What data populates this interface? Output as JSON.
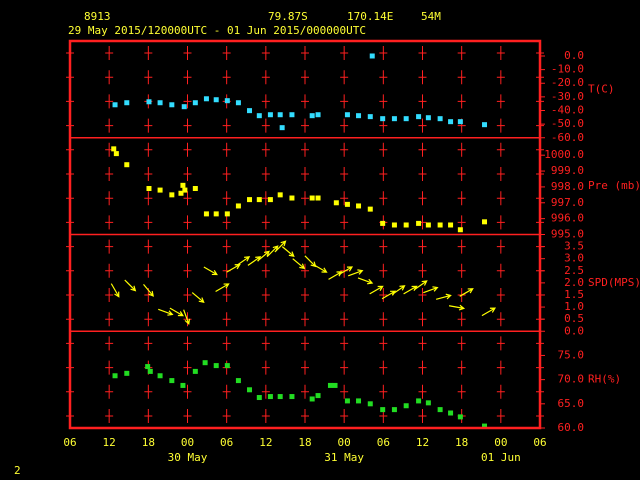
{
  "chart_data": {
    "type": "meteogram",
    "station": "8913",
    "latitude": "79.87S",
    "longitude": "170.14E",
    "elevation": "54M",
    "period": "29 May 2015/120000UTC - 01 Jun 2015/000000UTC",
    "page_number": "2",
    "xlim": [
      0,
      72
    ],
    "xticks": [
      {
        "value": 0,
        "label": "06"
      },
      {
        "value": 6,
        "label": "12"
      },
      {
        "value": 12,
        "label": "18"
      },
      {
        "value": 18,
        "label": "00"
      },
      {
        "value": 24,
        "label": "06"
      },
      {
        "value": 30,
        "label": "12"
      },
      {
        "value": 36,
        "label": "18"
      },
      {
        "value": 42,
        "label": "00"
      },
      {
        "value": 48,
        "label": "06"
      },
      {
        "value": 54,
        "label": "12"
      },
      {
        "value": 60,
        "label": "18"
      },
      {
        "value": 66,
        "label": "00"
      },
      {
        "value": 72,
        "label": "06"
      }
    ],
    "date_labels": [
      {
        "value": 18,
        "label": "30 May"
      },
      {
        "value": 42,
        "label": "31 May"
      },
      {
        "value": 66,
        "label": "01 Jun"
      }
    ],
    "panels": [
      {
        "type": "scatter",
        "label": "T(C)",
        "color": "#33ddff",
        "ylim": [
          -60,
          11
        ],
        "yticks": [
          {
            "value": 0,
            "label": "0.0"
          },
          {
            "value": -10,
            "label": "-10.0"
          },
          {
            "value": -20,
            "label": "-20.0"
          },
          {
            "value": -30,
            "label": "-30.0"
          },
          {
            "value": -40,
            "label": "-40.0"
          },
          {
            "value": -50,
            "label": "-50.0"
          },
          {
            "value": -60,
            "label": "-60.0"
          }
        ],
        "x": [
          6.9,
          8.7,
          12.1,
          13.8,
          15.6,
          17.5,
          19.2,
          20.9,
          22.4,
          24.1,
          25.8,
          27.5,
          29.0,
          30.7,
          32.2,
          32.5,
          34.0,
          37.1,
          38.0,
          42.5,
          44.2,
          46.0,
          46.3,
          47.9,
          49.7,
          51.5,
          53.4,
          54.9,
          56.7,
          58.3,
          59.8,
          63.5
        ],
        "values": [
          -35.8,
          -34.3,
          -33.6,
          -34.3,
          -35.8,
          -37.2,
          -34.3,
          -31.4,
          -32.1,
          -32.8,
          -34.3,
          -40.1,
          -43.8,
          -43.1,
          -43.1,
          -52.6,
          -43.1,
          -43.8,
          -43.1,
          -43.1,
          -43.8,
          -44.5,
          0,
          -46.0,
          -46.0,
          -46.0,
          -44.5,
          -45.3,
          -46.0,
          -48.2,
          -48.2,
          -50.4
        ]
      },
      {
        "type": "scatter",
        "label": "Pre (mb)",
        "color": "#ffff00",
        "ylim": [
          995,
          1001.1
        ],
        "yticks": [
          {
            "value": 1000,
            "label": "1000.0"
          },
          {
            "value": 999,
            "label": "999.0"
          },
          {
            "value": 998,
            "label": "998.0"
          },
          {
            "value": 997,
            "label": "997.0"
          },
          {
            "value": 996,
            "label": "996.0"
          },
          {
            "value": 995,
            "label": "995.0"
          }
        ],
        "x": [
          6.7,
          7.1,
          8.7,
          12.1,
          13.8,
          15.6,
          17.0,
          17.3,
          17.6,
          19.2,
          20.9,
          22.4,
          24.1,
          25.8,
          27.5,
          29.0,
          30.7,
          32.2,
          34.0,
          37.1,
          38.0,
          40.8,
          42.5,
          44.2,
          46.0,
          47.9,
          49.7,
          51.5,
          53.4,
          54.9,
          56.7,
          58.3,
          59.8,
          63.5
        ],
        "values": [
          1000.4,
          1000.1,
          999.4,
          997.9,
          997.8,
          997.5,
          997.6,
          998.1,
          997.8,
          997.9,
          996.3,
          996.3,
          996.3,
          996.8,
          997.2,
          997.2,
          997.2,
          997.5,
          997.3,
          997.3,
          997.3,
          997.0,
          996.9,
          996.8,
          996.6,
          995.7,
          995.6,
          995.6,
          995.7,
          995.6,
          995.6,
          995.6,
          995.3,
          995.8
        ]
      },
      {
        "type": "vector",
        "label": "SPD(MPS)",
        "color": "#ffff00",
        "ylim": [
          0,
          4
        ],
        "yticks": [
          {
            "value": 3.5,
            "label": "3.5"
          },
          {
            "value": 3,
            "label": "3.0"
          },
          {
            "value": 2.5,
            "label": "2.5"
          },
          {
            "value": 2,
            "label": "2.0"
          },
          {
            "value": 1.5,
            "label": "1.5"
          },
          {
            "value": 1,
            "label": "1.0"
          },
          {
            "value": 0.5,
            "label": "0.5"
          },
          {
            "value": 0,
            "label": "0.0"
          }
        ],
        "x": [
          6.9,
          9.2,
          12.0,
          14.6,
          16.3,
          17.8,
          19.6,
          21.5,
          23.3,
          25.0,
          26.5,
          28.2,
          29.6,
          31.0,
          32.2,
          33.4,
          35.0,
          36.8,
          38.3,
          40.6,
          42.2,
          43.7,
          45.2,
          46.9,
          48.8,
          50.3,
          52.1,
          53.7,
          55.2,
          57.2,
          59.2,
          60.7,
          64.1
        ],
        "values": [
          1.7,
          1.9,
          1.7,
          0.8,
          0.8,
          0.6,
          1.4,
          2.5,
          1.8,
          2.6,
          2.9,
          2.9,
          3.1,
          3.3,
          3.5,
          3.3,
          2.8,
          2.9,
          2.6,
          2.3,
          2.5,
          2.4,
          2.1,
          1.7,
          1.5,
          1.7,
          1.7,
          1.9,
          1.7,
          1.4,
          1.0,
          1.6,
          0.8
        ],
        "directions": [
          -60,
          -45,
          -50,
          -20,
          -30,
          -70,
          -40,
          -30,
          30,
          30,
          35,
          35,
          40,
          45,
          45,
          -40,
          -40,
          -45,
          -30,
          30,
          30,
          20,
          -20,
          30,
          30,
          35,
          30,
          35,
          20,
          15,
          -10,
          30,
          30
        ]
      },
      {
        "type": "scatter",
        "label": "RH(%)",
        "color": "#22dd22",
        "ylim": [
          60,
          80
        ],
        "yticks": [
          {
            "value": 75,
            "label": "75.0"
          },
          {
            "value": 70,
            "label": "70.0"
          },
          {
            "value": 65,
            "label": "65.0"
          },
          {
            "value": 60,
            "label": "60.0"
          }
        ],
        "x": [
          6.9,
          8.7,
          11.9,
          12.3,
          13.8,
          15.6,
          17.3,
          19.2,
          20.7,
          22.4,
          24.1,
          25.8,
          27.5,
          29.0,
          30.7,
          32.2,
          34.0,
          37.1,
          38.0,
          39.9,
          40.6,
          42.5,
          44.2,
          46.0,
          47.9,
          49.7,
          51.5,
          53.4,
          54.9,
          56.7,
          58.3,
          59.8,
          63.5
        ],
        "values": [
          70.8,
          71.3,
          72.7,
          71.7,
          70.8,
          69.8,
          68.8,
          71.7,
          73.5,
          72.9,
          72.9,
          69.8,
          67.9,
          66.3,
          66.5,
          66.5,
          66.5,
          66.0,
          66.7,
          68.8,
          68.8,
          65.6,
          65.6,
          65.0,
          63.8,
          63.8,
          64.6,
          65.6,
          65.2,
          63.8,
          63.1,
          62.3,
          60.4
        ]
      }
    ]
  }
}
